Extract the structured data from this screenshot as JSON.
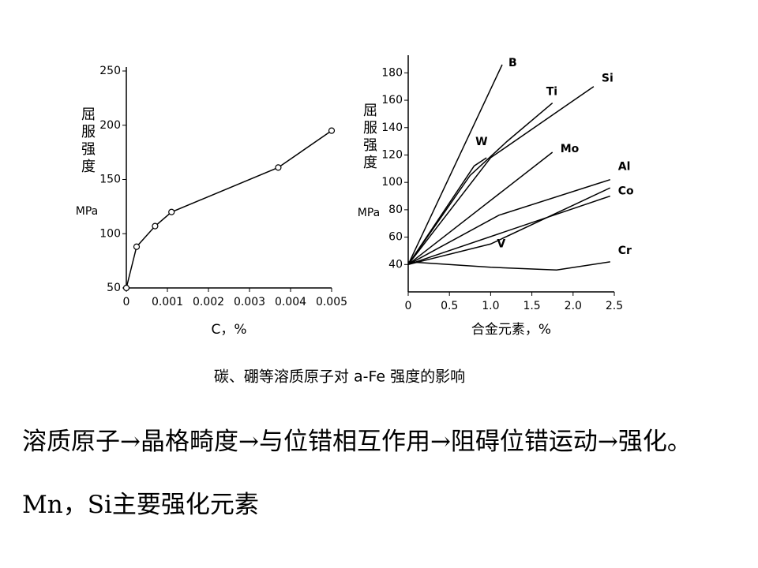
{
  "chart_data": [
    {
      "type": "line",
      "markers": true,
      "color": "#000000",
      "ylabel": "屈服强度",
      "yunit": "MPa",
      "xlabel": "C，%",
      "xlim": [
        0,
        0.005
      ],
      "xticks": [
        0,
        0.001,
        0.002,
        0.003,
        0.004,
        0.005
      ],
      "ylim": [
        50,
        250
      ],
      "yticks": [
        50,
        100,
        150,
        200,
        250
      ],
      "series": [
        {
          "name": null,
          "color": "#000000",
          "x": [
            0,
            0.00025,
            0.0007,
            0.0011,
            0.0037,
            0.005
          ],
          "values": [
            50,
            88,
            107,
            120,
            161,
            195
          ]
        }
      ]
    },
    {
      "type": "line",
      "markers": false,
      "ylabel": "屈服强度",
      "yunit": "MPa",
      "xlabel": "合金元素，%",
      "xlim": [
        0,
        2.5
      ],
      "xticks": [
        0,
        0.5,
        {
          "value": 1,
          "label": "1.0"
        },
        1.5,
        {
          "value": 2,
          "label": "2.0"
        },
        2.5
      ],
      "ylim": [
        20,
        190
      ],
      "yticks": [
        40,
        60,
        80,
        100,
        120,
        140,
        160,
        180
      ],
      "series": [
        {
          "name": "B",
          "color": "#000000",
          "x": [
            0,
            1.14
          ],
          "values": [
            40,
            186
          ]
        },
        {
          "name": "W",
          "color": "#000000",
          "x": [
            0,
            0.8,
            0.95
          ],
          "values": [
            40,
            112,
            118
          ]
        },
        {
          "name": "Ti",
          "color": "#000000",
          "x": [
            0,
            0.75,
            1.2,
            1.75
          ],
          "values": [
            40,
            105,
            130,
            158
          ]
        },
        {
          "name": "Si",
          "color": "#000000",
          "x": [
            0,
            1.0,
            2.25
          ],
          "values": [
            40,
            118,
            170
          ]
        },
        {
          "name": "Mo",
          "color": "#000000",
          "x": [
            0,
            1.75
          ],
          "values": [
            40,
            122
          ]
        },
        {
          "name": "Al",
          "color": "#000000",
          "x": [
            0,
            1.1,
            2.45
          ],
          "values": [
            40,
            76,
            102
          ]
        },
        {
          "name": "Co",
          "color": "#000000",
          "x": [
            0,
            2.45
          ],
          "values": [
            40,
            90
          ]
        },
        {
          "name": "V",
          "color": "#000000",
          "x": [
            0,
            1.0,
            2.45
          ],
          "values": [
            40,
            55,
            96
          ]
        },
        {
          "name": "Cr",
          "color": "#000000",
          "x": [
            0,
            1.0,
            1.8,
            2.45
          ],
          "values": [
            42,
            38,
            36,
            42
          ]
        }
      ]
    }
  ],
  "caption": "碳、硼等溶质原子对 a-Fe 强度的影响",
  "body": [
    "溶质原子→晶格畸度→与位错相互作用→阻碍位错运动→强化。",
    "Mn，Si主要强化元素"
  ]
}
